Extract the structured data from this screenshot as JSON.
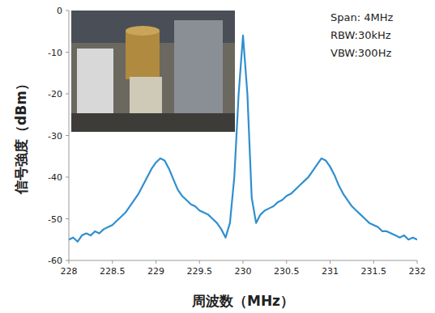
{
  "chart_data": {
    "type": "line",
    "x_label": "周波数（MHz）",
    "y_label": "信号強度（dBm）",
    "annotations": [
      "Span: 4MHz",
      "RBW:30kHz",
      "VBW:300Hz"
    ],
    "color": "#2f8fcf",
    "grid": false,
    "xlim": [
      228,
      232
    ],
    "ylim": [
      -60,
      0
    ],
    "xticks": [
      228,
      228.5,
      229,
      229.5,
      230,
      230.5,
      231,
      231.5,
      232
    ],
    "yticks": [
      0,
      -10,
      -20,
      -30,
      -40,
      -50,
      -60
    ],
    "x": [
      228.0,
      228.05,
      228.1,
      228.15,
      228.2,
      228.25,
      228.3,
      228.35,
      228.4,
      228.45,
      228.5,
      228.55,
      228.6,
      228.65,
      228.7,
      228.75,
      228.8,
      228.85,
      228.9,
      228.95,
      229.0,
      229.05,
      229.1,
      229.15,
      229.2,
      229.25,
      229.3,
      229.35,
      229.4,
      229.45,
      229.5,
      229.55,
      229.6,
      229.65,
      229.7,
      229.75,
      229.8,
      229.85,
      229.9,
      229.95,
      230.0,
      230.05,
      230.1,
      230.15,
      230.2,
      230.25,
      230.3,
      230.35,
      230.4,
      230.45,
      230.5,
      230.55,
      230.6,
      230.65,
      230.7,
      230.75,
      230.8,
      230.85,
      230.9,
      230.95,
      231.0,
      231.05,
      231.1,
      231.15,
      231.2,
      231.25,
      231.3,
      231.35,
      231.4,
      231.45,
      231.5,
      231.55,
      231.6,
      231.65,
      231.7,
      231.75,
      231.8,
      231.85,
      231.9,
      231.95,
      232.0
    ],
    "values": [
      -55,
      -54.5,
      -55.5,
      -54,
      -53.5,
      -54,
      -53,
      -53.5,
      -52.5,
      -52,
      -51.5,
      -50.5,
      -49.5,
      -48.5,
      -47,
      -45.5,
      -44,
      -42,
      -40,
      -38,
      -36.5,
      -35.5,
      -36,
      -38,
      -40.5,
      -43,
      -44.5,
      -45.5,
      -46.5,
      -47,
      -48,
      -48.5,
      -49,
      -50,
      -51,
      -52.5,
      -54.5,
      -51,
      -40,
      -20,
      -6,
      -20,
      -45,
      -51,
      -49,
      -48,
      -47.5,
      -47,
      -46,
      -45.5,
      -44.5,
      -44,
      -43,
      -42,
      -41,
      -40,
      -38.5,
      -37,
      -35.5,
      -36,
      -37.5,
      -39.5,
      -42,
      -44,
      -45.5,
      -47,
      -48,
      -49,
      -50,
      -51,
      -51.5,
      -52,
      -53,
      -53,
      -53.5,
      -54,
      -54.5,
      -54,
      -55,
      -54.5,
      -55
    ]
  }
}
